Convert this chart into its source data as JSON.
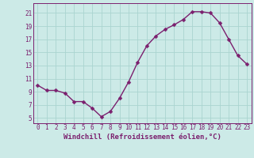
{
  "x": [
    0,
    1,
    2,
    3,
    4,
    5,
    6,
    7,
    8,
    9,
    10,
    11,
    12,
    13,
    14,
    15,
    16,
    17,
    18,
    19,
    20,
    21,
    22,
    23
  ],
  "y": [
    10.0,
    9.2,
    9.2,
    8.8,
    7.5,
    7.5,
    6.5,
    5.2,
    6.0,
    8.0,
    10.5,
    13.5,
    16.0,
    17.5,
    18.5,
    19.2,
    20.0,
    21.2,
    21.2,
    21.0,
    19.5,
    17.0,
    14.5,
    13.2
  ],
  "line_color": "#7B1F6E",
  "marker": "D",
  "markersize": 2.5,
  "linewidth": 1.0,
  "background_color": "#cceae7",
  "grid_color": "#aad4d0",
  "xlabel": "Windchill (Refroidissement éolien,°C)",
  "xlabel_fontsize": 6.5,
  "ytick_labels": [
    "5",
    "7",
    "9",
    "11",
    "13",
    "15",
    "17",
    "19",
    "21"
  ],
  "ytick_values": [
    5,
    7,
    9,
    11,
    13,
    15,
    17,
    19,
    21
  ],
  "ylim": [
    4.2,
    22.5
  ],
  "xlim": [
    -0.5,
    23.5
  ],
  "tick_color": "#7B1F6E",
  "tick_fontsize": 5.5,
  "label_color": "#7B1F6E"
}
